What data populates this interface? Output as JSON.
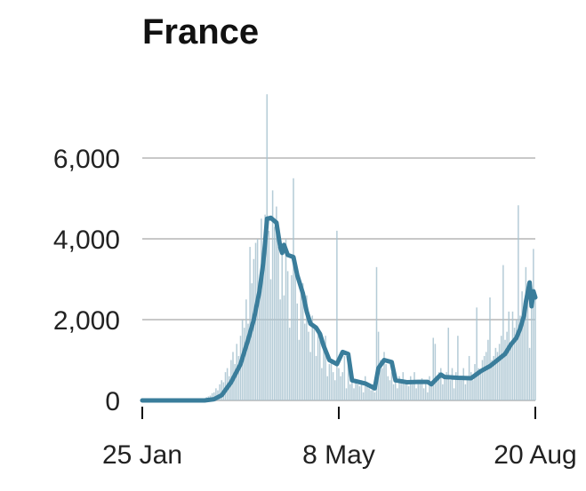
{
  "chart_data": {
    "type": "bar",
    "title": "France",
    "xlabel": "",
    "ylabel": "",
    "ylim": [
      0,
      7600
    ],
    "yticks": [
      0,
      2000,
      4000,
      6000
    ],
    "ytick_labels": [
      "0",
      "2,000",
      "4,000",
      "6,000"
    ],
    "xticks_day": [
      0,
      104,
      208
    ],
    "xtick_labels": [
      "25 Jan",
      "8 May",
      "20 Aug"
    ],
    "grid": true,
    "colors": {
      "bars": "#a8c3d0",
      "line": "#3a7d9b",
      "grid": "#c8c8c8"
    },
    "daily_cases": [
      0,
      0,
      0,
      0,
      0,
      0,
      0,
      0,
      0,
      0,
      0,
      0,
      0,
      0,
      0,
      0,
      0,
      0,
      0,
      0,
      0,
      0,
      0,
      0,
      0,
      0,
      0,
      0,
      0,
      0,
      10,
      20,
      30,
      50,
      80,
      100,
      120,
      180,
      200,
      300,
      250,
      400,
      500,
      450,
      700,
      800,
      600,
      1000,
      1200,
      900,
      1400,
      1100,
      1600,
      2000,
      1800,
      2500,
      1900,
      3800,
      2900,
      3500,
      3900,
      4000,
      2800,
      4500,
      3300,
      4600,
      7578,
      4200,
      3000,
      5200,
      4300,
      4800,
      3800,
      2500,
      3600,
      2600,
      4000,
      3200,
      1800,
      3100,
      5500,
      3300,
      2400,
      1500,
      2700,
      2900,
      1900,
      2600,
      1700,
      1200,
      2100,
      1800,
      1100,
      1700,
      1500,
      800,
      1300,
      1600,
      600,
      900,
      1000,
      700,
      500,
      4200,
      800,
      600,
      700,
      1100,
      300,
      1200,
      400,
      600,
      300,
      500,
      400,
      350,
      500,
      200,
      600,
      350,
      300,
      250,
      400,
      200,
      3300,
      1700,
      1000,
      800,
      1200,
      900,
      600,
      500,
      700,
      400,
      500,
      300,
      600,
      450,
      700,
      400,
      500,
      350,
      600,
      400,
      700,
      300,
      500,
      450,
      550,
      300,
      500,
      200,
      600,
      400,
      1550,
      1400,
      500,
      700,
      800,
      400,
      600,
      700,
      1800,
      500,
      800,
      300,
      700,
      1600,
      600,
      500,
      800,
      400,
      600,
      1100,
      700,
      500,
      900,
      2300,
      800,
      700,
      1000,
      1100,
      1200,
      1500,
      2550,
      1000,
      1100,
      1300,
      1200,
      1400,
      1600,
      3350,
      1500,
      1700,
      2200,
      1400,
      2200,
      1800,
      2000,
      4830,
      2100,
      2700,
      2400,
      3300,
      2900,
      1300,
      2300,
      3750,
      2600
    ],
    "rolling_avg": [
      [
        0,
        0
      ],
      [
        33,
        0
      ],
      [
        38,
        30
      ],
      [
        42,
        130
      ],
      [
        47,
        450
      ],
      [
        52,
        900
      ],
      [
        56,
        1500
      ],
      [
        59,
        2000
      ],
      [
        62,
        2700
      ],
      [
        64,
        3400
      ],
      [
        65,
        3900
      ],
      [
        66,
        4500
      ],
      [
        68,
        4520
      ],
      [
        71,
        4400
      ],
      [
        73,
        3800
      ],
      [
        74,
        3650
      ],
      [
        75,
        3850
      ],
      [
        77,
        3600
      ],
      [
        80,
        3550
      ],
      [
        82,
        3100
      ],
      [
        85,
        2650
      ],
      [
        87,
        2200
      ],
      [
        89,
        1900
      ],
      [
        92,
        1800
      ],
      [
        94,
        1650
      ],
      [
        96,
        1350
      ],
      [
        99,
        1000
      ],
      [
        103,
        900
      ],
      [
        106,
        1200
      ],
      [
        109,
        1150
      ],
      [
        111,
        500
      ],
      [
        118,
        420
      ],
      [
        123,
        300
      ],
      [
        125,
        800
      ],
      [
        128,
        1000
      ],
      [
        132,
        950
      ],
      [
        134,
        500
      ],
      [
        140,
        450
      ],
      [
        146,
        460
      ],
      [
        151,
        460
      ],
      [
        153,
        400
      ],
      [
        155,
        500
      ],
      [
        158,
        640
      ],
      [
        160,
        580
      ],
      [
        167,
        560
      ],
      [
        174,
        550
      ],
      [
        179,
        720
      ],
      [
        184,
        850
      ],
      [
        188,
        1000
      ],
      [
        192,
        1150
      ],
      [
        195,
        1380
      ],
      [
        198,
        1550
      ],
      [
        200,
        1780
      ],
      [
        202,
        2100
      ],
      [
        203,
        2440
      ],
      [
        205,
        2920
      ],
      [
        206,
        2330
      ],
      [
        207,
        2700
      ],
      [
        208,
        2550
      ]
    ]
  }
}
